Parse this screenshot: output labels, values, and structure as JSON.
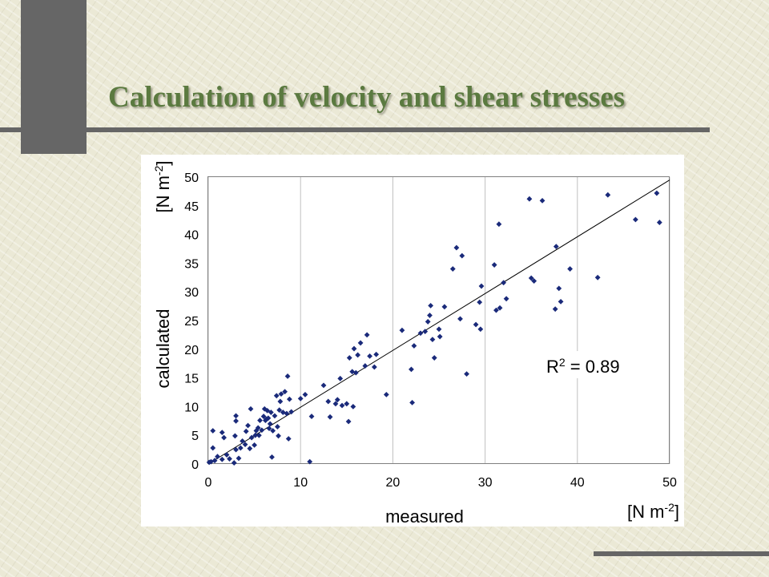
{
  "slide": {
    "title": "Calculation of velocity and shear stresses",
    "accent_color": "#5b7a40"
  },
  "chart_data": {
    "type": "scatter",
    "title": "",
    "xlabel": "measured",
    "ylabel": "calculated",
    "x_unit": "[N m⁻²]",
    "y_unit": "[N m⁻²]",
    "xlim": [
      0,
      50
    ],
    "ylim": [
      0,
      50
    ],
    "xticks": [
      0,
      10,
      20,
      30,
      40,
      50
    ],
    "yticks": [
      0,
      5,
      10,
      15,
      20,
      25,
      30,
      35,
      40,
      45,
      50
    ],
    "grid": "vertical gridlines",
    "marker": "diamond",
    "marker_color": "#1a2a7a",
    "annotation": "R² = 0.89",
    "trendline": {
      "from": [
        0,
        0
      ],
      "to": [
        50,
        49.5
      ]
    },
    "series": [
      {
        "points": [
          [
            0.1,
            0.3
          ],
          [
            0.3,
            0.4
          ],
          [
            0.7,
            0.6
          ],
          [
            0.5,
            2.8
          ],
          [
            0.5,
            5.8
          ],
          [
            1.0,
            1.3
          ],
          [
            1.5,
            5.5
          ],
          [
            1.5,
            0.8
          ],
          [
            1.7,
            4.6
          ],
          [
            2.0,
            1.6
          ],
          [
            2.3,
            0.9
          ],
          [
            2.8,
            0.2
          ],
          [
            3.0,
            2.5
          ],
          [
            2.9,
            4.9
          ],
          [
            3.0,
            7.5
          ],
          [
            3.0,
            8.4
          ],
          [
            3.3,
            1.0
          ],
          [
            3.5,
            2.8
          ],
          [
            3.7,
            4.0
          ],
          [
            4.0,
            3.4
          ],
          [
            4.1,
            5.7
          ],
          [
            4.3,
            6.7
          ],
          [
            4.6,
            9.6
          ],
          [
            4.5,
            2.7
          ],
          [
            4.7,
            4.6
          ],
          [
            5.0,
            3.3
          ],
          [
            5.1,
            5.0
          ],
          [
            5.2,
            5.8
          ],
          [
            5.4,
            6.3
          ],
          [
            5.5,
            5.0
          ],
          [
            5.6,
            7.6
          ],
          [
            5.8,
            5.9
          ],
          [
            6.0,
            8.3
          ],
          [
            6.1,
            9.6
          ],
          [
            6.2,
            7.6
          ],
          [
            6.3,
            7.8
          ],
          [
            6.4,
            9.3
          ],
          [
            6.5,
            8.0
          ],
          [
            6.6,
            6.2
          ],
          [
            6.7,
            7.0
          ],
          [
            6.8,
            9.0
          ],
          [
            6.9,
            1.2
          ],
          [
            7.0,
            5.8
          ],
          [
            7.2,
            8.4
          ],
          [
            7.4,
            11.9
          ],
          [
            7.5,
            6.5
          ],
          [
            7.6,
            4.9
          ],
          [
            7.7,
            9.4
          ],
          [
            7.8,
            10.9
          ],
          [
            7.9,
            12.2
          ],
          [
            8.1,
            9.0
          ],
          [
            8.3,
            12.6
          ],
          [
            8.5,
            8.8
          ],
          [
            8.6,
            15.3
          ],
          [
            8.7,
            4.4
          ],
          [
            8.8,
            11.3
          ],
          [
            9.0,
            9.1
          ],
          [
            10.0,
            11.4
          ],
          [
            10.5,
            12.1
          ],
          [
            11.0,
            0.4
          ],
          [
            11.2,
            8.3
          ],
          [
            12.5,
            13.7
          ],
          [
            13.0,
            10.9
          ],
          [
            13.2,
            8.2
          ],
          [
            13.8,
            10.5
          ],
          [
            14.0,
            11.2
          ],
          [
            14.3,
            14.9
          ],
          [
            14.5,
            10.2
          ],
          [
            15.0,
            10.5
          ],
          [
            15.2,
            7.4
          ],
          [
            15.3,
            18.5
          ],
          [
            15.6,
            16.1
          ],
          [
            15.7,
            10.0
          ],
          [
            15.8,
            20.1
          ],
          [
            16.0,
            15.9
          ],
          [
            16.2,
            19.0
          ],
          [
            16.5,
            21.1
          ],
          [
            17.0,
            17.1
          ],
          [
            17.2,
            22.5
          ],
          [
            17.5,
            18.8
          ],
          [
            18.0,
            16.9
          ],
          [
            18.2,
            19.1
          ],
          [
            19.3,
            12.1
          ],
          [
            21.0,
            23.3
          ],
          [
            22.0,
            16.5
          ],
          [
            22.1,
            10.7
          ],
          [
            22.3,
            20.6
          ],
          [
            23.0,
            22.8
          ],
          [
            23.5,
            23.1
          ],
          [
            23.8,
            24.8
          ],
          [
            24.0,
            25.9
          ],
          [
            24.1,
            27.6
          ],
          [
            24.3,
            21.7
          ],
          [
            24.5,
            18.5
          ],
          [
            25.0,
            23.5
          ],
          [
            25.1,
            22.2
          ],
          [
            25.6,
            27.4
          ],
          [
            26.5,
            34.0
          ],
          [
            26.9,
            37.7
          ],
          [
            27.3,
            25.3
          ],
          [
            27.5,
            36.3
          ],
          [
            28.0,
            15.7
          ],
          [
            29.0,
            24.3
          ],
          [
            29.5,
            23.5
          ],
          [
            29.6,
            31.0
          ],
          [
            29.4,
            28.2
          ],
          [
            31.0,
            34.7
          ],
          [
            31.2,
            26.8
          ],
          [
            31.5,
            41.8
          ],
          [
            31.6,
            27.2
          ],
          [
            32.0,
            31.6
          ],
          [
            32.3,
            28.8
          ],
          [
            34.8,
            46.2
          ],
          [
            35.0,
            32.4
          ],
          [
            35.3,
            31.9
          ],
          [
            36.2,
            45.9
          ],
          [
            37.6,
            27.0
          ],
          [
            37.7,
            37.9
          ],
          [
            38.0,
            30.6
          ],
          [
            38.2,
            28.3
          ],
          [
            39.2,
            34.0
          ],
          [
            42.2,
            32.5
          ],
          [
            43.3,
            46.9
          ],
          [
            46.3,
            42.6
          ],
          [
            48.6,
            47.2
          ],
          [
            48.9,
            42.1
          ]
        ]
      }
    ]
  }
}
